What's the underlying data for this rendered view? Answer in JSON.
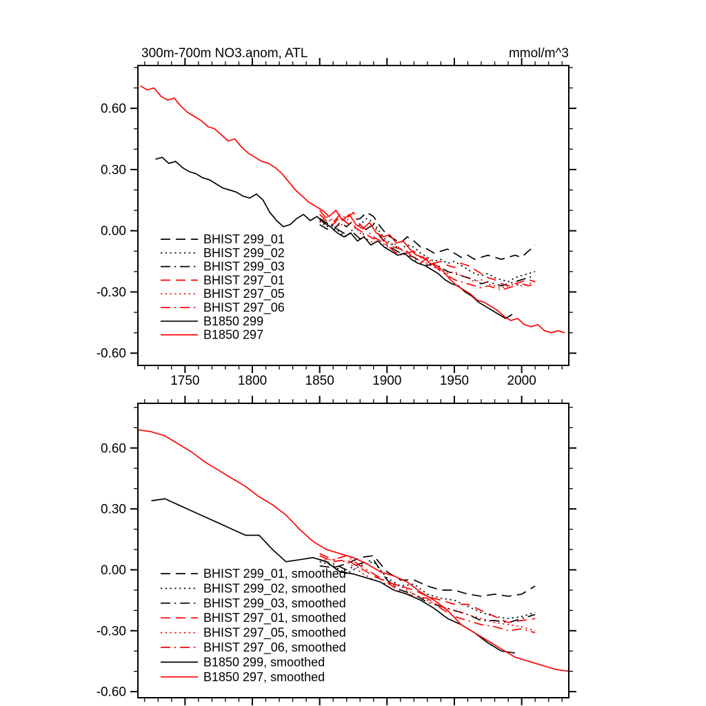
{
  "palette": {
    "black": "#000000",
    "red": "#ff0000",
    "background": "#ffffff"
  },
  "chart_data": [
    {
      "id": "top",
      "type": "line",
      "title": "300m-700m NO3.anom, ATL",
      "units_label": "mmol/m^3",
      "xlim": [
        1715,
        2035
      ],
      "ylim": [
        -0.66,
        0.81
      ],
      "xticks": [
        1750,
        1800,
        1850,
        1900,
        1950,
        2000
      ],
      "xtick_labels": [
        "1750",
        "1800",
        "1850",
        "1900",
        "1950",
        "2000"
      ],
      "x_minor_step": 10,
      "yticks": [
        -0.6,
        -0.3,
        0,
        0.3,
        0.6
      ],
      "ytick_labels": [
        "-0.60",
        "-0.30",
        "0.00",
        "0.30",
        "0.60"
      ],
      "y_minor_step": 0.1,
      "grid": false,
      "legend_position": "inside-left",
      "series": [
        {
          "name": "BHIST 299_01",
          "color": "#000000",
          "style": "dashed",
          "x0": 1850,
          "dx": 5,
          "y": [
            0.03,
            0.01,
            0.0,
            0.04,
            0.02,
            0.05,
            0.06,
            0.09,
            0.07,
            0.02,
            -0.02,
            -0.04,
            -0.06,
            -0.03,
            -0.05,
            -0.08,
            -0.09,
            -0.11,
            -0.1,
            -0.09,
            -0.11,
            -0.13,
            -0.12,
            -0.14,
            -0.13,
            -0.12,
            -0.13,
            -0.14,
            -0.13,
            -0.12,
            -0.13,
            -0.1,
            -0.07
          ]
        },
        {
          "name": "BHIST 299_02",
          "color": "#000000",
          "style": "dotted",
          "x0": 1850,
          "dx": 5,
          "y": [
            0.05,
            0.02,
            0.03,
            -0.01,
            -0.03,
            0.01,
            0.03,
            0.06,
            0.04,
            -0.01,
            -0.05,
            -0.07,
            -0.09,
            -0.07,
            -0.08,
            -0.11,
            -0.13,
            -0.15,
            -0.14,
            -0.16,
            -0.15,
            -0.17,
            -0.19,
            -0.21,
            -0.22,
            -0.21,
            -0.23,
            -0.24,
            -0.25,
            -0.23,
            -0.22,
            -0.21,
            -0.2
          ]
        },
        {
          "name": "BHIST 299_03",
          "color": "#000000",
          "style": "dashdot",
          "x0": 1850,
          "dx": 5,
          "y": [
            0.06,
            0.04,
            0.02,
            0.0,
            -0.02,
            -0.01,
            -0.04,
            0.01,
            0.03,
            -0.03,
            -0.07,
            -0.09,
            -0.11,
            -0.12,
            -0.13,
            -0.15,
            -0.17,
            -0.16,
            -0.18,
            -0.2,
            -0.21,
            -0.22,
            -0.23,
            -0.24,
            -0.26,
            -0.25,
            -0.26,
            -0.27,
            -0.26,
            -0.25,
            -0.24,
            -0.23,
            -0.22
          ]
        },
        {
          "name": "BHIST 297_01",
          "color": "#ff0000",
          "style": "dashed",
          "x0": 1850,
          "dx": 5,
          "y": [
            0.08,
            0.05,
            0.03,
            0.07,
            0.04,
            0.02,
            0.0,
            -0.02,
            -0.04,
            -0.03,
            -0.06,
            -0.08,
            -0.09,
            -0.11,
            -0.1,
            -0.13,
            -0.14,
            -0.16,
            -0.15,
            -0.17,
            -0.18,
            -0.16,
            -0.17,
            -0.19,
            -0.21,
            -0.23,
            -0.24,
            -0.26,
            -0.27,
            -0.26,
            -0.25,
            -0.24,
            -0.25
          ]
        },
        {
          "name": "BHIST 297_05",
          "color": "#ff0000",
          "style": "dotted",
          "x0": 1850,
          "dx": 5,
          "y": [
            0.04,
            0.07,
            0.05,
            0.02,
            0.06,
            0.03,
            -0.01,
            -0.04,
            -0.06,
            -0.05,
            -0.08,
            -0.06,
            -0.09,
            -0.12,
            -0.13,
            -0.15,
            -0.16,
            -0.18,
            -0.19,
            -0.21,
            -0.2,
            -0.22,
            -0.23,
            -0.25,
            -0.24,
            -0.26,
            -0.27,
            -0.28,
            -0.27,
            -0.26,
            -0.27,
            -0.26,
            -0.25
          ]
        },
        {
          "name": "BHIST 297_06",
          "color": "#ff0000",
          "style": "dashdot",
          "x0": 1850,
          "dx": 5,
          "y": [
            0.1,
            0.06,
            0.04,
            0.08,
            0.06,
            0.09,
            0.03,
            0.0,
            -0.03,
            -0.05,
            -0.07,
            -0.1,
            -0.12,
            -0.1,
            -0.14,
            -0.16,
            -0.13,
            -0.17,
            -0.2,
            -0.22,
            -0.24,
            -0.25,
            -0.26,
            -0.27,
            -0.28,
            -0.27,
            -0.28,
            -0.29,
            -0.28,
            -0.27,
            -0.26,
            -0.27,
            -0.26
          ]
        },
        {
          "name": "B1850 299",
          "color": "#000000",
          "style": "solid",
          "x0": 1728,
          "dx": 5,
          "y": [
            0.35,
            0.36,
            0.33,
            0.34,
            0.31,
            0.29,
            0.28,
            0.26,
            0.25,
            0.23,
            0.21,
            0.2,
            0.19,
            0.17,
            0.16,
            0.18,
            0.15,
            0.09,
            0.05,
            0.02,
            0.03,
            0.06,
            0.08,
            0.05,
            0.07,
            0.04,
            0.02,
            -0.01,
            -0.03,
            -0.01,
            -0.05,
            -0.03,
            -0.07,
            -0.05,
            -0.08,
            -0.1,
            -0.12,
            -0.11,
            -0.14,
            -0.16,
            -0.17,
            -0.19,
            -0.21,
            -0.24,
            -0.26,
            -0.27,
            -0.3,
            -0.32,
            -0.35,
            -0.37,
            -0.39,
            -0.41,
            -0.43,
            -0.41
          ]
        },
        {
          "name": "B1850 297",
          "color": "#ff0000",
          "style": "solid",
          "x0": 1717,
          "dx": 5,
          "y": [
            0.71,
            0.69,
            0.7,
            0.66,
            0.64,
            0.65,
            0.61,
            0.58,
            0.56,
            0.54,
            0.51,
            0.5,
            0.47,
            0.44,
            0.45,
            0.41,
            0.38,
            0.36,
            0.34,
            0.33,
            0.31,
            0.28,
            0.24,
            0.2,
            0.17,
            0.14,
            0.12,
            0.1,
            0.07,
            0.1,
            0.05,
            0.08,
            0.03,
            0.01,
            0.04,
            -0.01,
            -0.03,
            -0.02,
            -0.06,
            -0.05,
            -0.09,
            -0.12,
            -0.13,
            -0.16,
            -0.17,
            -0.2,
            -0.24,
            -0.27,
            -0.29,
            -0.31,
            -0.34,
            -0.35,
            -0.37,
            -0.39,
            -0.42,
            -0.44,
            -0.43,
            -0.46,
            -0.47,
            -0.46,
            -0.49,
            -0.5,
            -0.49,
            -0.5
          ]
        }
      ]
    },
    {
      "id": "bottom",
      "type": "line",
      "xlim": [
        1715,
        2035
      ],
      "ylim": [
        -0.63,
        0.82
      ],
      "xticks": [
        1750,
        1800,
        1850,
        1900,
        1950,
        2000
      ],
      "xtick_labels": [],
      "x_minor_step": 10,
      "yticks": [
        -0.6,
        -0.3,
        0,
        0.3,
        0.6
      ],
      "ytick_labels": [
        "-0.60",
        "-0.30",
        "0.00",
        "0.30",
        "0.60"
      ],
      "y_minor_step": 0.1,
      "grid": false,
      "legend_position": "inside-left",
      "series": [
        {
          "name": "BHIST 299_01, smoothed",
          "color": "#000000",
          "style": "dashed",
          "x0": 1850,
          "dx": 10,
          "y": [
            0.02,
            0.01,
            0.03,
            0.06,
            0.07,
            -0.01,
            -0.05,
            -0.05,
            -0.08,
            -0.1,
            -0.1,
            -0.12,
            -0.13,
            -0.12,
            -0.13,
            -0.12,
            -0.08
          ]
        },
        {
          "name": "BHIST 299_02, smoothed",
          "color": "#000000",
          "style": "dotted",
          "x0": 1850,
          "dx": 10,
          "y": [
            0.04,
            0.02,
            -0.02,
            0.02,
            0.04,
            -0.04,
            -0.08,
            -0.07,
            -0.12,
            -0.14,
            -0.15,
            -0.18,
            -0.21,
            -0.23,
            -0.24,
            -0.23,
            -0.21
          ]
        },
        {
          "name": "BHIST 299_03, smoothed",
          "color": "#000000",
          "style": "dashdot",
          "x0": 1850,
          "dx": 10,
          "y": [
            0.05,
            0.03,
            0.0,
            0.03,
            0.05,
            -0.05,
            -0.1,
            -0.12,
            -0.16,
            -0.18,
            -0.2,
            -0.22,
            -0.25,
            -0.25,
            -0.26,
            -0.24,
            -0.22
          ]
        },
        {
          "name": "BHIST 297_01, smoothed",
          "color": "#ff0000",
          "style": "dashed",
          "x0": 1850,
          "dx": 10,
          "y": [
            0.07,
            0.04,
            0.05,
            0.01,
            -0.03,
            -0.06,
            -0.08,
            -0.1,
            -0.13,
            -0.15,
            -0.17,
            -0.17,
            -0.2,
            -0.23,
            -0.26,
            -0.25,
            -0.24
          ]
        },
        {
          "name": "BHIST 297_05, smoothed",
          "color": "#ff0000",
          "style": "dotted",
          "x0": 1850,
          "dx": 10,
          "y": [
            0.05,
            0.05,
            0.04,
            -0.01,
            -0.05,
            -0.07,
            -0.08,
            -0.12,
            -0.15,
            -0.18,
            -0.2,
            -0.22,
            -0.24,
            -0.26,
            -0.27,
            -0.28,
            -0.3
          ]
        },
        {
          "name": "BHIST 297_06, smoothed",
          "color": "#ff0000",
          "style": "dashdot",
          "x0": 1850,
          "dx": 10,
          "y": [
            0.08,
            0.05,
            0.07,
            0.02,
            -0.02,
            -0.06,
            -0.11,
            -0.13,
            -0.14,
            -0.19,
            -0.23,
            -0.25,
            -0.27,
            -0.28,
            -0.3,
            -0.29,
            -0.31
          ]
        },
        {
          "name": "B1850 299, smoothed",
          "color": "#000000",
          "style": "solid",
          "x0": 1725,
          "dx": 10,
          "y": [
            0.34,
            0.35,
            0.32,
            0.29,
            0.26,
            0.23,
            0.2,
            0.17,
            0.17,
            0.1,
            0.04,
            0.05,
            0.06,
            0.04,
            -0.01,
            -0.02,
            -0.04,
            -0.06,
            -0.1,
            -0.12,
            -0.15,
            -0.19,
            -0.24,
            -0.27,
            -0.31,
            -0.36,
            -0.4,
            -0.41
          ]
        },
        {
          "name": "B1850 297, smoothed",
          "color": "#ff0000",
          "style": "solid",
          "x0": 1715,
          "dx": 10,
          "y": [
            0.69,
            0.68,
            0.66,
            0.62,
            0.58,
            0.53,
            0.49,
            0.45,
            0.41,
            0.36,
            0.32,
            0.27,
            0.2,
            0.14,
            0.1,
            0.08,
            0.06,
            0.03,
            -0.01,
            -0.03,
            -0.06,
            -0.11,
            -0.15,
            -0.2,
            -0.27,
            -0.31,
            -0.35,
            -0.39,
            -0.43,
            -0.45,
            -0.47,
            -0.49,
            -0.5
          ]
        }
      ]
    }
  ]
}
